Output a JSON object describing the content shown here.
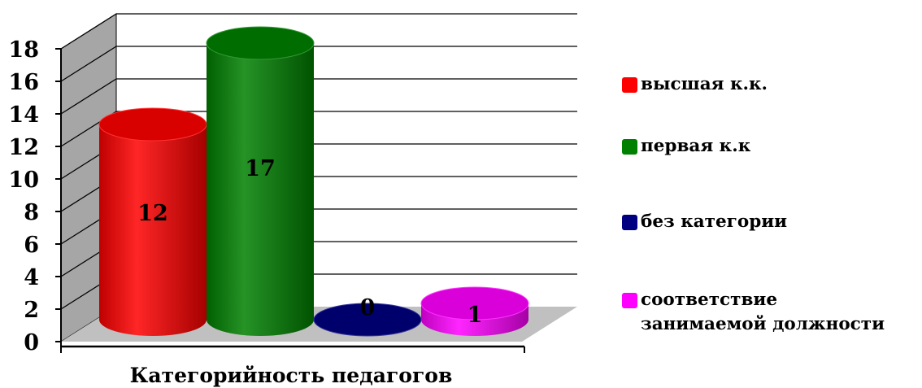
{
  "chart_data": {
    "type": "bar",
    "style": "3d-cylinder",
    "xlabel": "Категорийность педагогов",
    "ylabel": "",
    "ylim": [
      0,
      18
    ],
    "yticks": [
      0,
      2,
      4,
      6,
      8,
      10,
      12,
      14,
      16,
      18
    ],
    "grid": true,
    "legend_position": "right",
    "series": [
      {
        "name": "высшая к.к.",
        "value": 12,
        "label": "12",
        "color": "#ff0000"
      },
      {
        "name": "первая к.к",
        "value": 17,
        "label": "17",
        "color": "#008000"
      },
      {
        "name": "без категории",
        "value": 0,
        "label": "0",
        "color": "#000080"
      },
      {
        "name": "соответствие\nзанимаемой должности",
        "value": 1,
        "label": "1",
        "color": "#ff00ff"
      }
    ]
  }
}
